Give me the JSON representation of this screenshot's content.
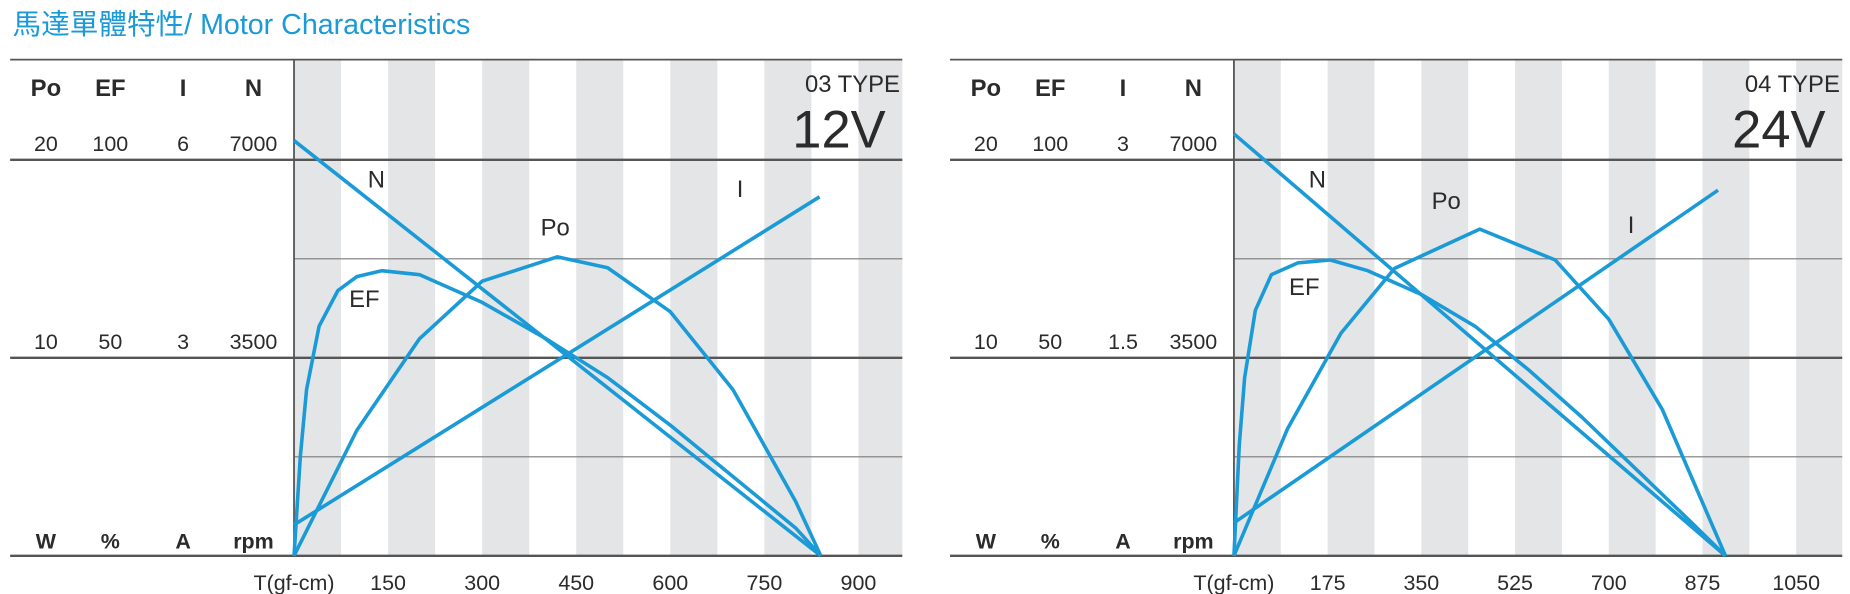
{
  "title": "馬達單體特性/ Motor Characteristics",
  "chart_data": [
    {
      "type": "line",
      "model": "03 TYPE",
      "voltage": "12V",
      "x_label": "T(gf-cm)",
      "xlim": [
        0,
        970
      ],
      "xticks": [
        150,
        300,
        450,
        600,
        750,
        900
      ],
      "axes": [
        {
          "name": "Po",
          "unit": "W",
          "ylim": [
            0,
            20
          ],
          "ticks": [
            10,
            20
          ]
        },
        {
          "name": "EF",
          "unit": "%",
          "ylim": [
            0,
            100
          ],
          "ticks": [
            50,
            100
          ]
        },
        {
          "name": "I",
          "unit": "A",
          "ylim": [
            0,
            6
          ],
          "ticks": [
            3,
            6
          ]
        },
        {
          "name": "N",
          "unit": "rpm",
          "ylim": [
            0,
            7000
          ],
          "ticks": [
            3500,
            7000
          ]
        }
      ],
      "series": [
        {
          "name": "N",
          "axis": 3,
          "color": "#1a9ad6",
          "x": [
            0,
            840
          ],
          "values": [
            7340,
            0
          ]
        },
        {
          "name": "I",
          "axis": 2,
          "color": "#1a9ad6",
          "x": [
            0,
            838
          ],
          "values": [
            0.47,
            5.44
          ]
        },
        {
          "name": "Po",
          "axis": 0,
          "color": "#1a9ad6",
          "x": [
            0,
            100,
            200,
            300,
            420,
            500,
            600,
            700,
            800,
            840
          ],
          "values": [
            0,
            6.33,
            10.96,
            13.87,
            15.1,
            14.55,
            12.33,
            8.39,
            2.74,
            0
          ]
        },
        {
          "name": "EF",
          "axis": 1,
          "color": "#1a9ad6",
          "x": [
            0,
            10,
            20,
            40,
            70,
            100,
            140,
            200,
            300,
            400,
            500,
            600,
            700,
            800,
            840
          ],
          "values": [
            0,
            25,
            42,
            58,
            67,
            70.5,
            72,
            71,
            64,
            55,
            45,
            33,
            20,
            7,
            0
          ]
        }
      ]
    },
    {
      "type": "line",
      "model": "04 TYPE",
      "voltage": "24V",
      "x_label": "T(gf-cm)",
      "xlim": [
        0,
        1136
      ],
      "xticks": [
        175,
        350,
        525,
        700,
        875,
        1050
      ],
      "axes": [
        {
          "name": "Po",
          "unit": "W",
          "ylim": [
            0,
            20
          ],
          "ticks": [
            10,
            20
          ]
        },
        {
          "name": "EF",
          "unit": "%",
          "ylim": [
            0,
            100
          ],
          "ticks": [
            50,
            100
          ]
        },
        {
          "name": "I",
          "unit": "A",
          "ylim": [
            0,
            3
          ],
          "ticks": [
            1.5,
            3
          ]
        },
        {
          "name": "N",
          "unit": "rpm",
          "ylim": [
            0,
            7000
          ],
          "ticks": [
            3500,
            7000
          ]
        }
      ],
      "series": [
        {
          "name": "N",
          "axis": 3,
          "color": "#1a9ad6",
          "x": [
            0,
            918
          ],
          "values": [
            7460,
            0
          ]
        },
        {
          "name": "I",
          "axis": 2,
          "color": "#1a9ad6",
          "x": [
            0,
            904
          ],
          "values": [
            0.25,
            2.77
          ]
        },
        {
          "name": "Po",
          "axis": 0,
          "color": "#1a9ad6",
          "x": [
            0,
            100,
            200,
            300,
            459,
            600,
            700,
            800,
            918
          ],
          "values": [
            0,
            6.41,
            11.25,
            14.52,
            16.5,
            14.94,
            11.95,
            7.39,
            0
          ]
        },
        {
          "name": "EF",
          "axis": 1,
          "color": "#1a9ad6",
          "x": [
            0,
            10,
            20,
            40,
            70,
            120,
            180,
            250,
            350,
            450,
            550,
            650,
            750,
            850,
            918
          ],
          "values": [
            0,
            28,
            45,
            62,
            71,
            74,
            74.7,
            72,
            66,
            58,
            47,
            35,
            22,
            9,
            0
          ]
        }
      ]
    }
  ]
}
